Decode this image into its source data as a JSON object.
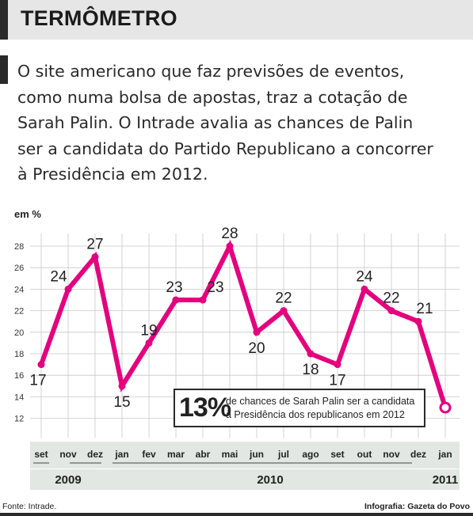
{
  "header": {
    "title": "TERMÔMETRO"
  },
  "intro": {
    "lines": [
      "O site americano que faz previsões de eventos,",
      "como numa bolsa de apostas, traz a cotação de",
      "Sarah Palin. O Intrade avalia as chances de Palin",
      "ser a candidata do Partido Republicano a concorrer",
      "à Presidência em 2012."
    ]
  },
  "colors": {
    "line": "#e5007e",
    "grid": "#c8c8c8",
    "band": "#e2e7e3"
  },
  "callout": {
    "value": "13%",
    "line1": "de chances de Sarah Palin ser a candidata",
    "line2": "à Presidência dos republicanos em 2012"
  },
  "footer": {
    "source": "Fonte: Intrade.",
    "credit": "Infografia: Gazeta do Povo"
  },
  "chart_data": {
    "type": "line",
    "ylabel": "em %",
    "ylim": [
      10,
      29
    ],
    "yticks": [
      12,
      14,
      16,
      18,
      20,
      22,
      24,
      26,
      28
    ],
    "grid": true,
    "categories": [
      "set",
      "nov",
      "dez",
      "jan",
      "fev",
      "mar",
      "abr",
      "mai",
      "jun",
      "jul",
      "ago",
      "set",
      "out",
      "nov",
      "dez",
      "jan"
    ],
    "values": [
      17,
      24,
      27,
      15,
      19,
      23,
      23,
      28,
      20,
      22,
      18,
      17,
      24,
      22,
      21,
      13
    ],
    "data_labels": [
      "17",
      "24",
      "27",
      "15",
      "19",
      "23",
      "23",
      "28",
      "20",
      "22",
      "18",
      "17",
      "24",
      "22",
      "21",
      ""
    ],
    "years": [
      {
        "label": "2009",
        "from": 0,
        "to": 2
      },
      {
        "label": "2010",
        "from": 3,
        "to": 14
      },
      {
        "label": "2011",
        "from": 15,
        "to": 15
      }
    ]
  }
}
